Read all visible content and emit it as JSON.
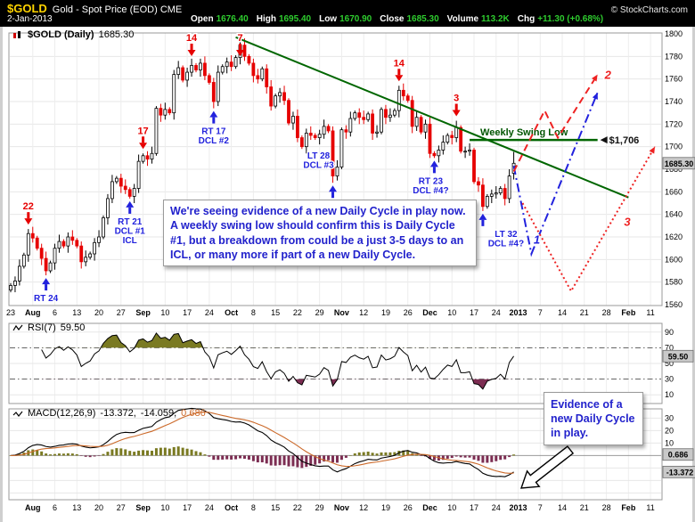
{
  "header": {
    "symbol": "$GOLD",
    "desc": "Gold - Spot Price (EOD) CME",
    "copyright": "© StockCharts.com",
    "date": "2-Jan-2013",
    "fields": [
      {
        "label": "Open",
        "value": "1676.40"
      },
      {
        "label": "High",
        "value": "1695.40"
      },
      {
        "label": "Low",
        "value": "1670.90"
      },
      {
        "label": "Close",
        "value": "1685.30"
      },
      {
        "label": "Volume",
        "value": "113.2K"
      },
      {
        "label": "Chg",
        "value": "+11.30 (+0.68%)"
      }
    ]
  },
  "chart_data": {
    "type": "candlestick",
    "symbol_title": "$GOLD (Daily)",
    "last_price": "1685.30",
    "colors": {
      "candle_up": "#000000",
      "candle_down": "#e60000",
      "cycle_high": "#e60000",
      "cycle_low": "#2222dd",
      "trend_green": "#006600",
      "note_blue": "#2222cc",
      "overbought_fill": "#7a7a22",
      "oversold_fill": "#7c2d52",
      "signal_line": "#cc6a2a"
    },
    "y_axis": {
      "min": 1560,
      "max": 1800,
      "step": 20
    },
    "x_ticks": {
      "labels": [
        "23",
        "Aug",
        "6",
        "13",
        "20",
        "27",
        "Sep",
        "10",
        "17",
        "24",
        "Oct",
        "8",
        "15",
        "22",
        "29",
        "Nov",
        "12",
        "19",
        "26",
        "Dec",
        "10",
        "17",
        "24",
        "2013",
        "7",
        "14",
        "21",
        "28",
        "Feb",
        "11"
      ],
      "days_per_tick": 5,
      "total_day_slots": 148
    },
    "closes": [
      1577,
      1581,
      1594,
      1604,
      1623,
      1619,
      1610,
      1601,
      1590,
      1597,
      1610,
      1616,
      1612,
      1620,
      1617,
      1612,
      1598,
      1602,
      1605,
      1615,
      1620,
      1637,
      1654,
      1669,
      1672,
      1665,
      1662,
      1656,
      1663,
      1687,
      1692,
      1689,
      1694,
      1734,
      1728,
      1733,
      1730,
      1764,
      1770,
      1759,
      1766,
      1772,
      1768,
      1774,
      1763,
      1757,
      1740,
      1766,
      1771,
      1775,
      1771,
      1779,
      1790,
      1780,
      1774,
      1763,
      1760,
      1769,
      1753,
      1736,
      1745,
      1748,
      1741,
      1721,
      1727,
      1708,
      1700,
      1712,
      1710,
      1708,
      1711,
      1718,
      1714,
      1674,
      1682,
      1715,
      1713,
      1725,
      1730,
      1726,
      1724,
      1729,
      1712,
      1713,
      1733,
      1726,
      1728,
      1732,
      1750,
      1745,
      1741,
      1718,
      1726,
      1713,
      1720,
      1694,
      1692,
      1697,
      1704,
      1710,
      1708,
      1717,
      1696,
      1696,
      1697,
      1669,
      1666,
      1647,
      1656,
      1658,
      1659,
      1663,
      1654,
      1674,
      1685.3
    ],
    "last_ohlc": {
      "open": 1676.4,
      "high": 1695.4,
      "low": 1670.9,
      "close": 1685.3
    },
    "annotations": {
      "cycle_highs": [
        {
          "label": "22",
          "i": 4
        },
        {
          "label": "17",
          "i": 30
        },
        {
          "label": "14",
          "i": 41
        },
        {
          "label": "7",
          "i": 52
        },
        {
          "label": "14",
          "i": 88
        },
        {
          "label": "3",
          "i": 101
        }
      ],
      "cycle_lows": [
        {
          "lines": [
            "RT 24"
          ],
          "i": 8
        },
        {
          "lines": [
            "RT 21",
            "DCL #1",
            "ICL"
          ],
          "i": 27,
          "float_price": 1654
        },
        {
          "lines": [
            "RT 17",
            "DCL #2"
          ],
          "i": 46
        },
        {
          "lines": [
            "LT 28",
            "DCL #3"
          ],
          "i": 73,
          "tdx": -16,
          "tdy": -56
        },
        {
          "lines": [
            "RT 23",
            "DCL #4?"
          ],
          "i": 96,
          "tdx": -4
        },
        {
          "lines": [
            "LT 32",
            "DCL #4?"
          ],
          "i": 107,
          "tdx": 26
        }
      ],
      "trendline": {
        "pts": [
          [
            51,
            1797
          ],
          [
            140,
            1655
          ]
        ]
      },
      "swing_low_line": {
        "price": 1706,
        "i1": 104,
        "i2": 133,
        "label": "Weekly Swing Low",
        "price_label": "$1,706"
      },
      "projections": [
        {
          "label": "1",
          "style": "dashdot",
          "color": "#2222dd",
          "pts": [
            [
              114,
              1683
            ],
            [
              118,
              1605
            ],
            [
              133,
              1748
            ]
          ],
          "label_at": [
            118.5,
            1614
          ]
        },
        {
          "label": "2",
          "style": "dash",
          "color": "#ee2222",
          "pts": [
            [
              114,
              1678
            ],
            [
              121,
              1732
            ],
            [
              124,
              1708
            ],
            [
              133,
              1764
            ]
          ],
          "label_at": [
            134.6,
            1760
          ]
        },
        {
          "label": "3",
          "style": "dot",
          "color": "#ee2222",
          "pts": [
            [
              116,
              1650
            ],
            [
              127,
              1572
            ],
            [
              146,
              1700
            ]
          ],
          "label_at": [
            139,
            1630
          ]
        }
      ]
    },
    "rsi": {
      "title": "RSI(7)",
      "last": "59.50",
      "period": 7,
      "overbought": 70,
      "oversold": 30,
      "axis": [
        90,
        70,
        50,
        30,
        10
      ]
    },
    "macd": {
      "title": "MACD(12,26,9)",
      "macd_value": "-13.372,",
      "signal_value": "-14.059,",
      "hist_value": "0.686",
      "badges": {
        "hist": "0.686",
        "macd": "-13.372"
      },
      "axis": [
        30,
        20,
        10
      ],
      "range": [
        -34,
        36
      ],
      "params": [
        12,
        26,
        9
      ]
    },
    "notes": {
      "cycle": "We're seeing evidence of a new Daily Cycle in play now.  A weekly swing low should confirm this is Daily Cycle #1, but a breakdown from could be a just 3-5 days to an ICL, or many more if part of a new Daily Cycle.",
      "evidence": "Evidence of a new Daily Cycle in play."
    }
  }
}
